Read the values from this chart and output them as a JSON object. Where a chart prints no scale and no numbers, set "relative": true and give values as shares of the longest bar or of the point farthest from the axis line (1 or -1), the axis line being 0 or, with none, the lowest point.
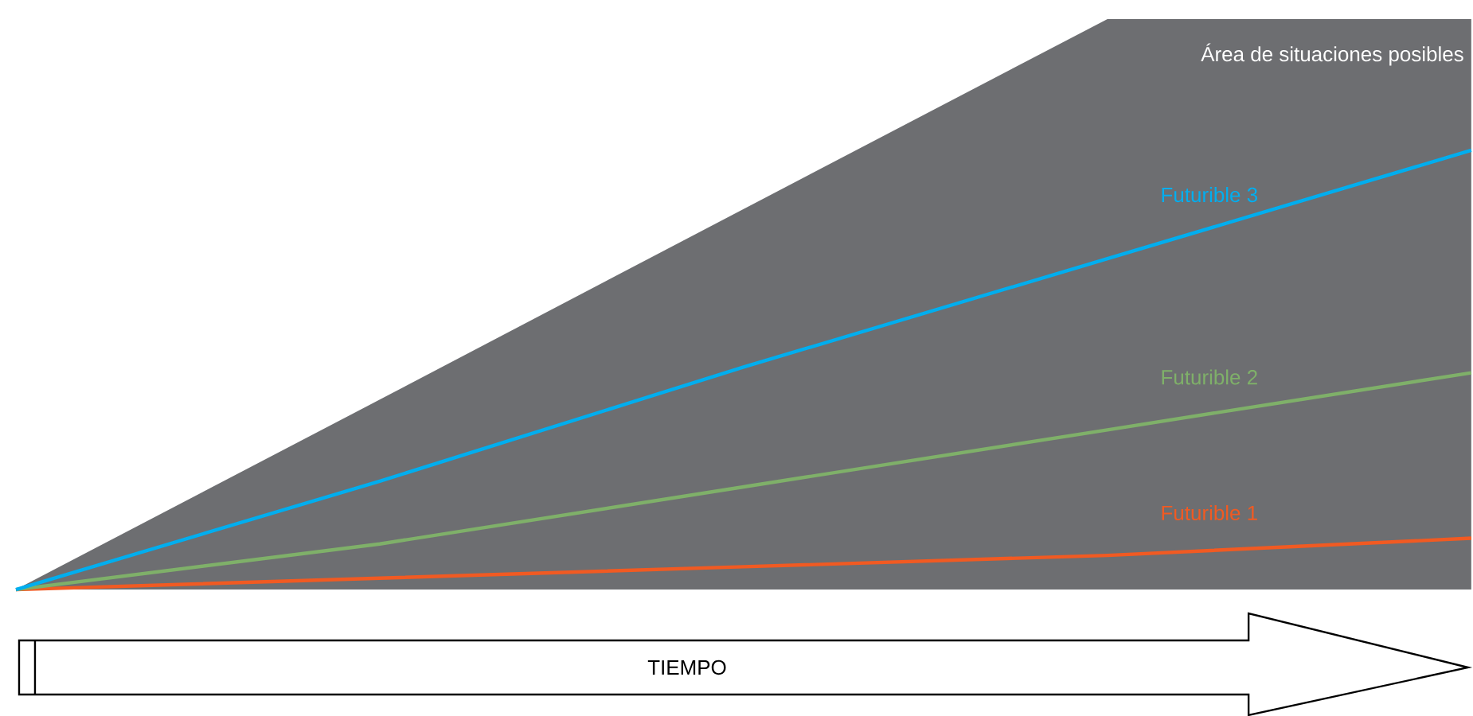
{
  "chart_data": {
    "type": "line",
    "relative": true,
    "xlabel": "TIEMPO",
    "legend": false,
    "marker": "none",
    "line_style": "solid",
    "categories": [
      null,
      null,
      null,
      null,
      null
    ],
    "series": [
      {
        "name": "Área de situaciones posibles",
        "type": "area",
        "color": "#6d6e71",
        "values": [
          0,
          0.333,
          0.667,
          1,
          1
        ]
      },
      {
        "name": "Futurible 1",
        "color": "#f15a22",
        "values": [
          0,
          0.02,
          0.04,
          0.06,
          0.09
        ]
      },
      {
        "name": "Futurible 2",
        "color": "#7fb069",
        "values": [
          0,
          0.08,
          0.18,
          0.28,
          0.38
        ]
      },
      {
        "name": "Futurible 3",
        "color": "#00aeef",
        "values": [
          0,
          0.19,
          0.39,
          0.58,
          0.77
        ]
      }
    ]
  }
}
